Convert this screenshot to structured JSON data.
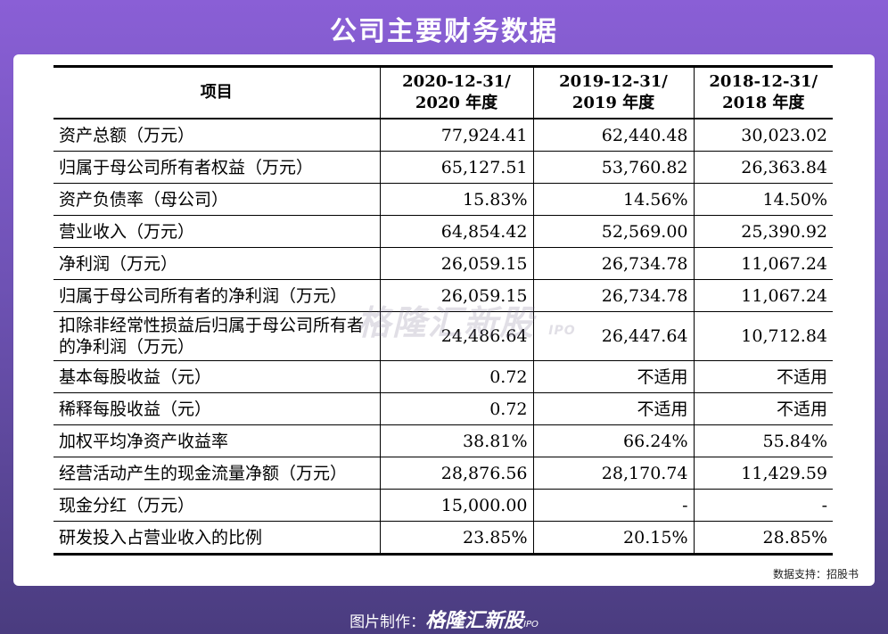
{
  "title": "公司主要财务数据",
  "table": {
    "header": {
      "item": "项目",
      "col1": [
        "2020-12-31/",
        "2020 年度"
      ],
      "col2": [
        "2019-12-31/",
        "2019 年度"
      ],
      "col3": [
        "2018-12-31/",
        "2018 年度"
      ]
    },
    "rows": [
      {
        "label": "资产总额（万元）",
        "v2020": "77,924.41",
        "v2019": "62,440.48",
        "v2018": "30,023.02"
      },
      {
        "label": "归属于母公司所有者权益（万元）",
        "v2020": "65,127.51",
        "v2019": "53,760.82",
        "v2018": "26,363.84"
      },
      {
        "label": "资产负债率（母公司）",
        "v2020": "15.83%",
        "v2019": "14.56%",
        "v2018": "14.50%"
      },
      {
        "label": "营业收入（万元）",
        "v2020": "64,854.42",
        "v2019": "52,569.00",
        "v2018": "25,390.92"
      },
      {
        "label": "净利润（万元）",
        "v2020": "26,059.15",
        "v2019": "26,734.78",
        "v2018": "11,067.24"
      },
      {
        "label": "归属于母公司所有者的净利润（万元）",
        "v2020": "26,059.15",
        "v2019": "26,734.78",
        "v2018": "11,067.24"
      },
      {
        "label": "扣除非经常性损益后归属于母公司所有者的净利润（万元）",
        "v2020": "24,486.64",
        "v2019": "26,447.64",
        "v2018": "10,712.84"
      },
      {
        "label": "基本每股收益（元）",
        "v2020": "0.72",
        "v2019": "不适用",
        "v2018": "不适用"
      },
      {
        "label": "稀释每股收益（元）",
        "v2020": "0.72",
        "v2019": "不适用",
        "v2018": "不适用"
      },
      {
        "label": "加权平均净资产收益率",
        "v2020": "38.81%",
        "v2019": "66.24%",
        "v2018": "55.84%"
      },
      {
        "label": "经营活动产生的现金流量净额（万元）",
        "v2020": "28,876.56",
        "v2019": "28,170.74",
        "v2018": "11,429.59"
      },
      {
        "label": "现金分红（万元）",
        "v2020": "15,000.00",
        "v2019": "-",
        "v2018": "-"
      },
      {
        "label": "研发投入占营业收入的比例",
        "v2020": "23.85%",
        "v2019": "20.15%",
        "v2018": "28.85%"
      }
    ]
  },
  "source": "数据支持：招股书",
  "watermark": {
    "brand": "格隆汇新股",
    "sub": "IPO"
  },
  "footer": {
    "prefix": "图片制作：",
    "brand": "格隆汇新股",
    "sub": "IPO"
  }
}
